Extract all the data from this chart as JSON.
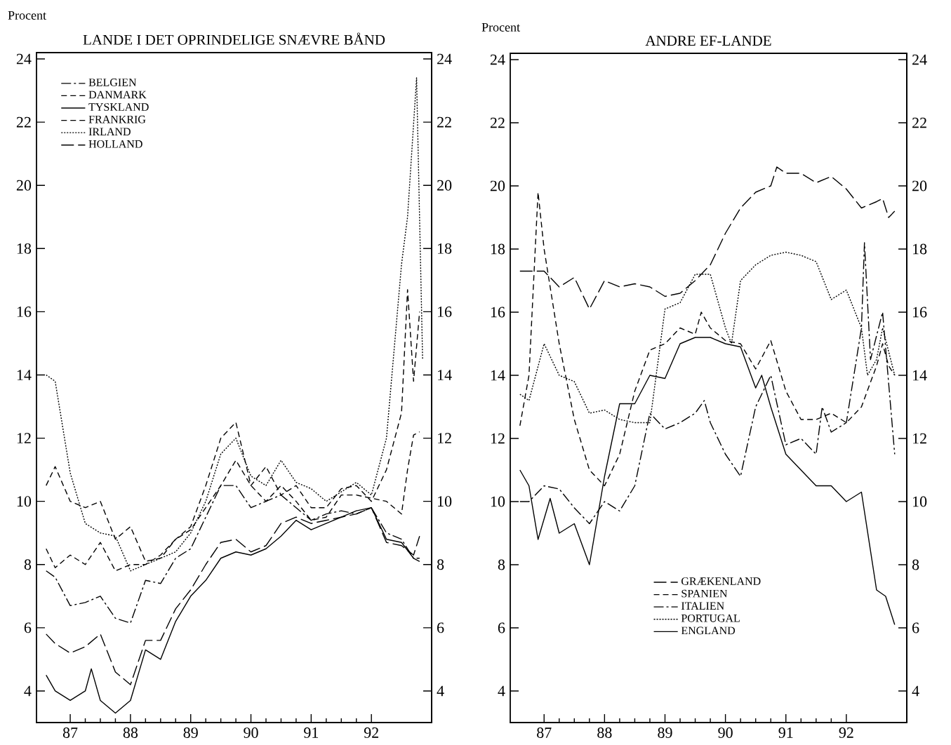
{
  "chart_data": [
    {
      "type": "line",
      "title": "LANDE I DET OPRINDELIGE SNÆVRE BÅND",
      "ylabel": "Procent",
      "legend": "top left",
      "xlim": [
        1986.44,
        1993.0
      ],
      "xticks": [
        {
          "value": 1987,
          "label": "87"
        },
        {
          "value": 1988,
          "label": "88"
        },
        {
          "value": 1989,
          "label": "89"
        },
        {
          "value": 1990,
          "label": "90"
        },
        {
          "value": 1991,
          "label": "91"
        },
        {
          "value": 1992,
          "label": "92"
        }
      ],
      "ylim": [
        3,
        24.2
      ],
      "yticks": [
        4,
        6,
        8,
        10,
        12,
        14,
        16,
        18,
        20,
        22,
        24
      ],
      "y2lim": [
        3,
        24.2
      ],
      "y2ticks": [
        4,
        6,
        8,
        10,
        12,
        14,
        16,
        18,
        20,
        22,
        24
      ],
      "series": [
        {
          "name": "BELGIEN",
          "color": "#000000",
          "line_style": "dashdot",
          "x": [
            1986.6,
            1986.75,
            1987.0,
            1987.25,
            1987.5,
            1987.75,
            1988.0,
            1988.25,
            1988.5,
            1988.75,
            1989.0,
            1989.25,
            1989.5,
            1989.75,
            1990.0,
            1990.25,
            1990.5,
            1990.75,
            1991.0,
            1991.25,
            1991.5,
            1991.75,
            1992.0,
            1992.25,
            1992.5,
            1992.7,
            1992.8
          ],
          "values": [
            7.8,
            7.6,
            6.7,
            6.8,
            7.0,
            6.3,
            6.15,
            7.5,
            7.4,
            8.2,
            8.5,
            9.5,
            10.5,
            10.5,
            9.8,
            10.0,
            10.2,
            9.8,
            9.4,
            9.6,
            9.7,
            9.6,
            9.8,
            9.0,
            8.8,
            8.2,
            8.2
          ]
        },
        {
          "name": "DANMARK",
          "color": "#000000",
          "line_style": "dashed",
          "x": [
            1986.6,
            1986.75,
            1987.0,
            1987.25,
            1987.5,
            1987.75,
            1988.0,
            1988.25,
            1988.5,
            1988.75,
            1989.0,
            1989.25,
            1989.5,
            1989.75,
            1990.0,
            1990.25,
            1990.5,
            1990.75,
            1991.0,
            1991.25,
            1991.5,
            1991.75,
            1992.0,
            1992.25,
            1992.5,
            1992.6,
            1992.7,
            1992.8
          ],
          "values": [
            10.5,
            11.1,
            10.0,
            9.8,
            10.0,
            8.8,
            9.2,
            8.1,
            8.2,
            8.8,
            9.2,
            10.5,
            12.0,
            12.5,
            10.5,
            11.1,
            10.2,
            10.5,
            9.8,
            9.8,
            10.4,
            10.5,
            10.0,
            11.0,
            12.8,
            16.7,
            13.8,
            16.0
          ]
        },
        {
          "name": "TYSKLAND",
          "color": "#000000",
          "line_style": "solid",
          "x": [
            1986.6,
            1986.75,
            1987.0,
            1987.25,
            1987.35,
            1987.5,
            1987.75,
            1988.0,
            1988.25,
            1988.5,
            1988.75,
            1989.0,
            1989.25,
            1989.5,
            1989.75,
            1990.0,
            1990.25,
            1990.5,
            1990.75,
            1991.0,
            1991.25,
            1991.5,
            1991.75,
            1992.0,
            1992.25,
            1992.5,
            1992.7,
            1992.8
          ],
          "values": [
            4.5,
            4.0,
            3.7,
            4.0,
            4.7,
            3.7,
            3.3,
            3.7,
            5.3,
            5.0,
            6.2,
            7.0,
            7.5,
            8.2,
            8.4,
            8.3,
            8.5,
            8.9,
            9.4,
            9.1,
            9.3,
            9.5,
            9.7,
            9.8,
            8.8,
            8.7,
            8.2,
            8.1
          ]
        },
        {
          "name": "FRANKRIG",
          "color": "#000000",
          "line_style": "dashed",
          "x": [
            1986.6,
            1986.75,
            1987.0,
            1987.25,
            1987.5,
            1987.75,
            1988.0,
            1988.25,
            1988.5,
            1988.75,
            1989.0,
            1989.25,
            1989.5,
            1989.75,
            1990.0,
            1990.25,
            1990.5,
            1990.75,
            1991.0,
            1991.25,
            1991.5,
            1991.75,
            1992.0,
            1992.25,
            1992.5,
            1992.6,
            1992.7,
            1992.8
          ],
          "values": [
            8.5,
            7.9,
            8.3,
            8.0,
            8.7,
            7.8,
            8.0,
            8.0,
            8.3,
            8.8,
            9.1,
            9.8,
            10.5,
            11.3,
            10.5,
            10.0,
            10.5,
            10.0,
            9.4,
            9.5,
            10.2,
            10.2,
            10.1,
            10.0,
            9.6,
            11.0,
            12.1,
            12.2
          ]
        },
        {
          "name": "IRLAND",
          "color": "#000000",
          "line_style": "dotted",
          "x": [
            1986.6,
            1986.75,
            1987.0,
            1987.25,
            1987.5,
            1987.75,
            1988.0,
            1988.25,
            1988.5,
            1988.75,
            1989.0,
            1989.25,
            1989.5,
            1989.75,
            1990.0,
            1990.25,
            1990.5,
            1990.75,
            1991.0,
            1991.25,
            1991.5,
            1991.75,
            1992.0,
            1992.25,
            1992.5,
            1992.6,
            1992.75,
            1992.85
          ],
          "values": [
            14.0,
            13.8,
            10.9,
            9.3,
            9.0,
            8.9,
            7.8,
            8.0,
            8.2,
            8.4,
            9.0,
            10.0,
            11.5,
            12.0,
            10.8,
            10.5,
            11.3,
            10.6,
            10.4,
            10.0,
            10.3,
            10.6,
            10.2,
            12.0,
            17.5,
            19.0,
            23.4,
            14.5
          ]
        },
        {
          "name": "HOLLAND",
          "color": "#000000",
          "line_style": "longdash",
          "x": [
            1986.6,
            1986.75,
            1987.0,
            1987.25,
            1987.5,
            1987.75,
            1988.0,
            1988.25,
            1988.5,
            1988.75,
            1989.0,
            1989.25,
            1989.5,
            1989.75,
            1990.0,
            1990.25,
            1990.5,
            1990.75,
            1991.0,
            1991.25,
            1991.5,
            1991.75,
            1992.0,
            1992.25,
            1992.5,
            1992.7,
            1992.8
          ],
          "values": [
            5.8,
            5.5,
            5.2,
            5.4,
            5.8,
            4.6,
            4.2,
            5.6,
            5.6,
            6.6,
            7.2,
            8.0,
            8.7,
            8.8,
            8.4,
            8.6,
            9.3,
            9.5,
            9.3,
            9.4,
            9.5,
            9.6,
            9.8,
            8.7,
            8.6,
            8.3,
            8.9
          ]
        }
      ]
    },
    {
      "type": "line",
      "title": "ANDRE EF-LANDE",
      "ylabel": "Procent",
      "legend": "bottom",
      "xlim": [
        1986.44,
        1993.0
      ],
      "xticks": [
        {
          "value": 1987,
          "label": "87"
        },
        {
          "value": 1988,
          "label": "88"
        },
        {
          "value": 1989,
          "label": "89"
        },
        {
          "value": 1990,
          "label": "90"
        },
        {
          "value": 1991,
          "label": "91"
        },
        {
          "value": 1992,
          "label": "92"
        }
      ],
      "ylim": [
        3,
        24.2
      ],
      "yticks": [
        4,
        6,
        8,
        10,
        12,
        14,
        16,
        18,
        20,
        22,
        24
      ],
      "y2lim": [
        3,
        24.2
      ],
      "y2ticks": [
        4,
        6,
        8,
        10,
        12,
        14,
        16,
        18,
        20,
        22,
        24
      ],
      "series": [
        {
          "name": "GRÆKENLAND",
          "color": "#000000",
          "line_style": "longdash",
          "x": [
            1986.6,
            1987.0,
            1987.25,
            1987.5,
            1987.75,
            1988.0,
            1988.25,
            1988.5,
            1988.75,
            1989.0,
            1989.25,
            1989.5,
            1989.75,
            1990.0,
            1990.25,
            1990.5,
            1990.75,
            1990.85,
            1991.0,
            1991.25,
            1991.5,
            1991.75,
            1992.0,
            1992.25,
            1992.5,
            1992.6,
            1992.7,
            1992.8
          ],
          "values": [
            17.3,
            17.3,
            16.8,
            17.1,
            16.1,
            17.0,
            16.8,
            16.9,
            16.8,
            16.5,
            16.6,
            17.0,
            17.5,
            18.5,
            19.3,
            19.8,
            20.0,
            20.6,
            20.4,
            20.4,
            20.1,
            20.3,
            19.9,
            19.3,
            19.5,
            19.6,
            19.0,
            19.2
          ]
        },
        {
          "name": "SPANIEN",
          "color": "#000000",
          "line_style": "dashed",
          "x": [
            1986.6,
            1986.75,
            1986.9,
            1987.0,
            1987.25,
            1987.5,
            1987.75,
            1988.0,
            1988.25,
            1988.5,
            1988.75,
            1989.0,
            1989.25,
            1989.5,
            1989.6,
            1989.75,
            1990.0,
            1990.25,
            1990.5,
            1990.75,
            1991.0,
            1991.25,
            1991.5,
            1991.75,
            1992.0,
            1992.25,
            1992.5,
            1992.6,
            1992.7,
            1992.8
          ],
          "values": [
            12.4,
            14.0,
            19.8,
            18.0,
            15.0,
            12.6,
            11.0,
            10.5,
            11.5,
            13.5,
            14.8,
            15.0,
            15.5,
            15.3,
            16.0,
            15.5,
            15.1,
            15.0,
            14.2,
            15.1,
            13.5,
            12.6,
            12.6,
            12.8,
            12.5,
            13.0,
            14.3,
            15.0,
            14.3,
            14.0
          ]
        },
        {
          "name": "ITALIEN",
          "color": "#000000",
          "line_style": "dashdot",
          "x": [
            1986.6,
            1986.75,
            1987.0,
            1987.25,
            1987.5,
            1987.75,
            1988.0,
            1988.25,
            1988.5,
            1988.75,
            1989.0,
            1989.25,
            1989.5,
            1989.65,
            1989.75,
            1990.0,
            1990.25,
            1990.5,
            1990.75,
            1991.0,
            1991.25,
            1991.5,
            1991.6,
            1991.75,
            1992.0,
            1992.25,
            1992.3,
            1992.4,
            1992.6,
            1992.8
          ],
          "values": [
            10.0,
            10.0,
            10.5,
            10.4,
            9.8,
            9.3,
            10.0,
            9.7,
            10.5,
            12.8,
            12.3,
            12.5,
            12.8,
            13.2,
            12.5,
            11.5,
            10.8,
            13.0,
            14.0,
            11.8,
            12.0,
            11.5,
            13.0,
            12.2,
            12.5,
            15.5,
            18.2,
            14.5,
            16.0,
            11.5
          ]
        },
        {
          "name": "PORTUGAL",
          "color": "#000000",
          "line_style": "dotted",
          "x": [
            1986.6,
            1986.75,
            1987.0,
            1987.25,
            1987.5,
            1987.75,
            1988.0,
            1988.25,
            1988.5,
            1988.75,
            1989.0,
            1989.25,
            1989.5,
            1989.75,
            1990.0,
            1990.1,
            1990.25,
            1990.5,
            1990.75,
            1991.0,
            1991.25,
            1991.5,
            1991.75,
            1992.0,
            1992.25,
            1992.35,
            1992.5,
            1992.6,
            1992.8
          ],
          "values": [
            13.4,
            13.2,
            15.0,
            14.0,
            13.8,
            12.8,
            12.9,
            12.6,
            12.5,
            12.5,
            16.1,
            16.3,
            17.2,
            17.2,
            15.5,
            15.0,
            17.0,
            17.5,
            17.8,
            17.9,
            17.8,
            17.6,
            16.4,
            16.7,
            15.5,
            14.0,
            14.5,
            15.5,
            14.0
          ]
        },
        {
          "name": "ENGLAND",
          "color": "#000000",
          "line_style": "solid",
          "x": [
            1986.6,
            1986.75,
            1986.9,
            1987.1,
            1987.25,
            1987.5,
            1987.75,
            1988.0,
            1988.25,
            1988.5,
            1988.75,
            1989.0,
            1989.25,
            1989.5,
            1989.75,
            1990.0,
            1990.25,
            1990.5,
            1990.6,
            1990.75,
            1991.0,
            1991.25,
            1991.5,
            1991.75,
            1992.0,
            1992.25,
            1992.5,
            1992.65,
            1992.8
          ],
          "values": [
            11.0,
            10.5,
            8.8,
            10.1,
            9.0,
            9.3,
            8.0,
            10.8,
            13.1,
            13.1,
            14.0,
            13.9,
            15.0,
            15.2,
            15.2,
            15.0,
            14.9,
            13.6,
            14.0,
            13.0,
            11.5,
            11.0,
            10.5,
            10.5,
            10.0,
            10.3,
            7.2,
            7.0,
            6.1
          ]
        }
      ]
    }
  ]
}
